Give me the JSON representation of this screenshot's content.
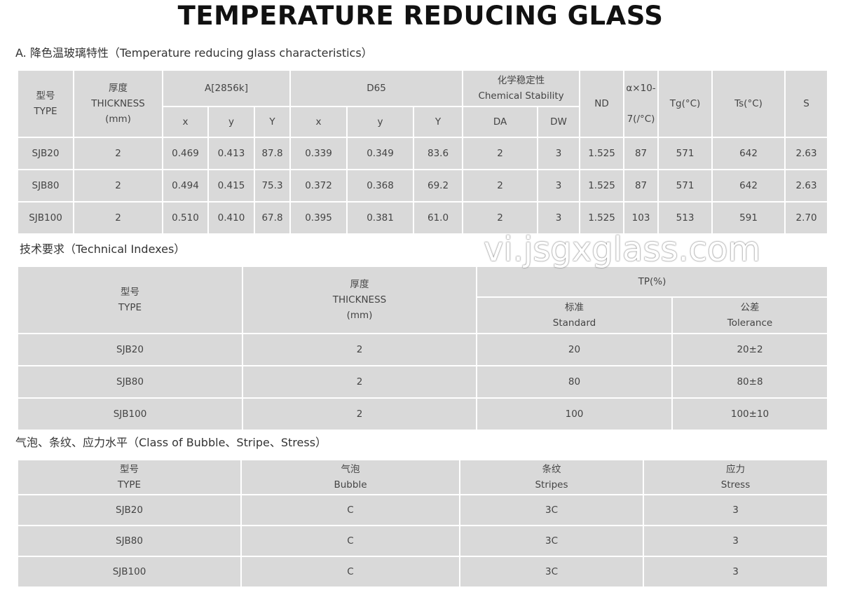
{
  "title": "TEMPERATURE REDUCING GLASS",
  "section_a": {
    "caption": "A. 降色温玻璃特性（Temperature reducing glass characteristics）",
    "headers": {
      "type_cn": "型号",
      "type": "TYPE",
      "thick_cn": "厚度",
      "thick": "THICKNESS",
      "thick_unit": "(mm)",
      "a": "A[2856k]",
      "d65": "D65",
      "chem_cn": "化学稳定性",
      "chem": "Chemical Stability",
      "nd": "ND",
      "alpha1": "α×10-",
      "alpha2": "7(/°C)",
      "tg": "Tg(°C)",
      "ts": "Ts(°C)",
      "s": "S",
      "x": "x",
      "y": "y",
      "Y": "Y",
      "da": "DA",
      "dw": "DW"
    },
    "rows": [
      [
        "SJB20",
        "2",
        "0.469",
        "0.413",
        "87.8",
        "0.339",
        "0.349",
        "83.6",
        "2",
        "3",
        "1.525",
        "87",
        "571",
        "642",
        "2.63"
      ],
      [
        "SJB80",
        "2",
        "0.494",
        "0.415",
        "75.3",
        "0.372",
        "0.368",
        "69.2",
        "2",
        "3",
        "1.525",
        "87",
        "571",
        "642",
        "2.63"
      ],
      [
        "SJB100",
        "2",
        "0.510",
        "0.410",
        "67.8",
        "0.395",
        "0.381",
        "61.0",
        "2",
        "3",
        "1.525",
        "103",
        "513",
        "591",
        "2.70"
      ]
    ]
  },
  "section_b": {
    "caption": "技术要求（Technical Indexes）",
    "headers": {
      "type_cn": "型号",
      "type": "TYPE",
      "thick_cn": "厚度",
      "thick": "THICKNESS",
      "thick_unit": "(mm)",
      "tp": "TP(%)",
      "std_cn": "标准",
      "std": "Standard",
      "tol_cn": "公差",
      "tol": "Tolerance"
    },
    "rows": [
      [
        "SJB20",
        "2",
        "20",
        "20±2"
      ],
      [
        "SJB80",
        "2",
        "80",
        "80±8"
      ],
      [
        "SJB100",
        "2",
        "100",
        "100±10"
      ]
    ]
  },
  "section_c": {
    "caption": "气泡、条纹、应力水平（Class of Bubble、Stripe、Stress）",
    "headers": {
      "type_cn": "型号",
      "type": "TYPE",
      "bubble_cn": "气泡",
      "bubble": "Bubble",
      "stripes_cn": "条纹",
      "stripes": "Stripes",
      "stress_cn": "应力",
      "stress": "Stress"
    },
    "rows": [
      [
        "SJB20",
        "C",
        "3C",
        "3"
      ],
      [
        "SJB80",
        "C",
        "3C",
        "3"
      ],
      [
        "SJB100",
        "C",
        "3C",
        "3"
      ]
    ]
  },
  "watermark": "vi.jsgxglass.com"
}
